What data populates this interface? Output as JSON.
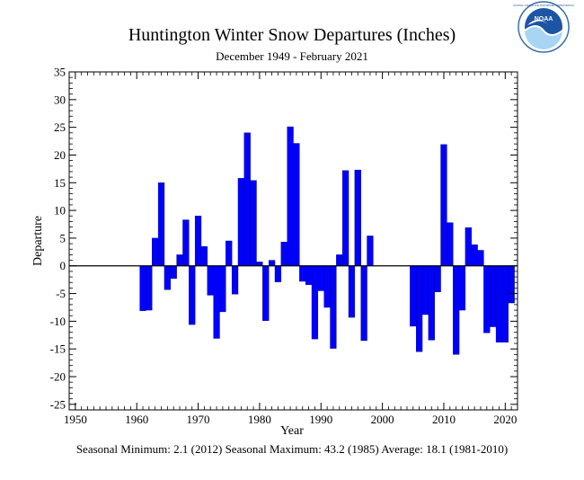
{
  "chart_data": {
    "type": "bar",
    "title": "Huntington Winter Snow Departures (Inches)",
    "subtitle": "December 1949 - February 2021",
    "xlabel": "Year",
    "ylabel": "Departure",
    "footer": "Seasonal Minimum: 2.1 (2012) Seasonal Maximum: 43.2 (1985) Average: 18.1 (1981-2010)",
    "xlim": [
      1949,
      2022
    ],
    "ylim": [
      -26,
      35
    ],
    "x_ticks": [
      1950,
      1960,
      1970,
      1980,
      1990,
      2000,
      2010,
      2020
    ],
    "y_ticks": [
      -25,
      -20,
      -15,
      -10,
      -5,
      0,
      5,
      10,
      15,
      20,
      25,
      30,
      35
    ],
    "bar_color": "#0000ff",
    "grid": false,
    "logo": {
      "text": "NOAA",
      "arc_text": "NATIONAL OCEANIC AND ATMOSPHERIC ADMINISTRATION"
    },
    "years": [
      1961,
      1962,
      1963,
      1964,
      1965,
      1966,
      1967,
      1968,
      1969,
      1970,
      1971,
      1972,
      1973,
      1974,
      1975,
      1976,
      1977,
      1978,
      1979,
      1980,
      1981,
      1982,
      1983,
      1984,
      1985,
      1986,
      1987,
      1988,
      1989,
      1990,
      1991,
      1992,
      1993,
      1994,
      1995,
      1996,
      1997,
      1998,
      2005,
      2006,
      2007,
      2008,
      2009,
      2010,
      2011,
      2012,
      2013,
      2014,
      2015,
      2016,
      2017,
      2018,
      2019,
      2020,
      2021
    ],
    "values": [
      -8.1,
      -8.0,
      5.0,
      15.0,
      -4.3,
      -2.3,
      2.0,
      8.3,
      -10.6,
      9.0,
      3.5,
      -5.3,
      -13.1,
      -8.3,
      4.5,
      -5.1,
      15.8,
      24.0,
      15.4,
      0.7,
      -9.9,
      1.0,
      -2.9,
      4.3,
      25.1,
      22.1,
      -2.8,
      -3.4,
      -13.2,
      -4.5,
      -7.5,
      -14.9,
      2.0,
      17.2,
      -9.3,
      17.3,
      -13.5,
      5.4,
      -10.9,
      -15.5,
      -8.8,
      -13.4,
      -4.7,
      21.9,
      7.8,
      -16.0,
      -8.0,
      6.9,
      3.8,
      2.8,
      -12.1,
      -11.0,
      -13.8,
      -13.8,
      -6.7
    ]
  }
}
